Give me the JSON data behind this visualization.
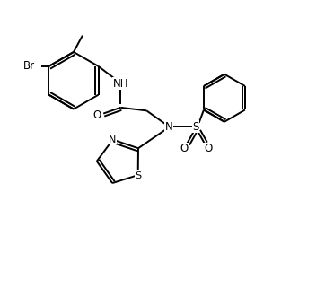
{
  "bg_color": "#ffffff",
  "line_color": "#000000",
  "line_width": 1.4,
  "font_size": 8.5,
  "figsize": [
    3.62,
    3.21
  ],
  "dpi": 100,
  "xlim": [
    0,
    10
  ],
  "ylim": [
    0,
    9
  ]
}
